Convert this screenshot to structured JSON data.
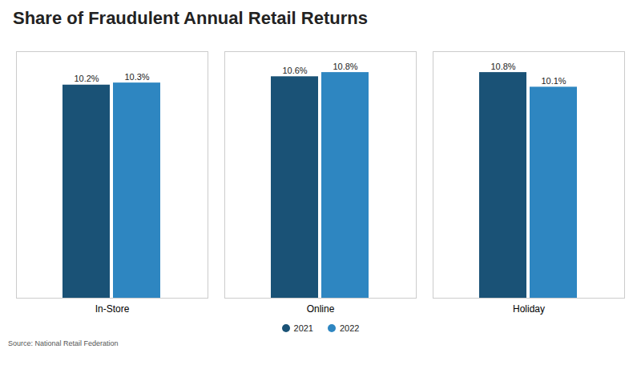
{
  "chart_data": {
    "type": "bar",
    "title": "Share of Fraudulent Annual Retail Returns",
    "categories": [
      "In-Store",
      "Online",
      "Holiday"
    ],
    "series": [
      {
        "name": "2021",
        "color": "#1a5276",
        "values": [
          10.2,
          10.6,
          10.8
        ],
        "value_labels": [
          "10.2%",
          "10.6%",
          "10.8%"
        ]
      },
      {
        "name": "2022",
        "color": "#2e86c1",
        "values": [
          10.3,
          10.8,
          10.1
        ],
        "value_labels": [
          "10.3%",
          "10.8%",
          "10.1%"
        ]
      }
    ],
    "ylim": [
      0,
      11.8
    ],
    "grid": false,
    "legend": "bottom",
    "data_labels": true,
    "tick_labels": "x",
    "source": "Source: National Retail Federation"
  }
}
